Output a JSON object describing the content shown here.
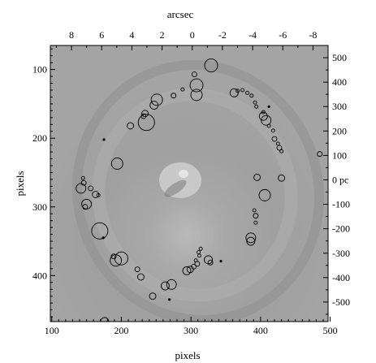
{
  "figure": {
    "top_axis_label": "arcsec",
    "left_axis_label": "pixels",
    "bottom_axis_label": "pixels",
    "right_axis_unit": "pc",
    "colors": {
      "background": "#9a9a9a",
      "frame": "#000000",
      "marker": "#000000"
    }
  },
  "chart_data": {
    "type": "scatter",
    "image_type": "greyscale residual image with circled sources",
    "axes": {
      "bottom": {
        "label": "pixels",
        "ticks": [
          100,
          200,
          300,
          400,
          500
        ],
        "range": [
          98,
          497
        ]
      },
      "left": {
        "label": "pixels",
        "ticks": [
          100,
          200,
          300,
          400
        ],
        "range": [
          65,
          467
        ],
        "inverted": true
      },
      "top": {
        "label": "arcsec",
        "ticks": [
          8,
          6,
          4,
          2,
          0,
          -2,
          -4,
          -6,
          -8
        ],
        "range": [
          9.4,
          -9.0
        ]
      },
      "right": {
        "label": "",
        "unit": "pc",
        "ticks": [
          500,
          400,
          300,
          200,
          100,
          0,
          -100,
          -200,
          -300,
          -400,
          -500
        ],
        "range": [
          550,
          -580
        ]
      }
    },
    "sources": [
      {
        "x": 329,
        "y": 94,
        "r": 8
      },
      {
        "x": 305,
        "y": 107,
        "r": 3
      },
      {
        "x": 308,
        "y": 123,
        "r": 8
      },
      {
        "x": 308,
        "y": 137,
        "r": 7
      },
      {
        "x": 288,
        "y": 129,
        "r": 2
      },
      {
        "x": 275,
        "y": 138,
        "r": 3
      },
      {
        "x": 251,
        "y": 144,
        "r": 7
      },
      {
        "x": 247,
        "y": 152,
        "r": 5
      },
      {
        "x": 234,
        "y": 164,
        "r": 4
      },
      {
        "x": 232,
        "y": 168,
        "r": 3
      },
      {
        "x": 236,
        "y": 177,
        "r": 10
      },
      {
        "x": 213,
        "y": 182,
        "r": 4
      },
      {
        "x": 194,
        "y": 237,
        "r": 7
      },
      {
        "x": 175,
        "y": 202,
        "r": 1
      },
      {
        "x": 145,
        "y": 258,
        "r": 2
      },
      {
        "x": 146,
        "y": 265,
        "r": 3
      },
      {
        "x": 142,
        "y": 273,
        "r": 6
      },
      {
        "x": 156,
        "y": 273,
        "r": 3
      },
      {
        "x": 163,
        "y": 282,
        "r": 4
      },
      {
        "x": 167,
        "y": 283,
        "r": 2
      },
      {
        "x": 150,
        "y": 296,
        "r": 6
      },
      {
        "x": 148,
        "y": 300,
        "r": 3
      },
      {
        "x": 169,
        "y": 335,
        "r": 10
      },
      {
        "x": 174,
        "y": 345,
        "r": 1
      },
      {
        "x": 189,
        "y": 372,
        "r": 3
      },
      {
        "x": 192,
        "y": 378,
        "r": 7
      },
      {
        "x": 200,
        "y": 375,
        "r": 8
      },
      {
        "x": 223,
        "y": 391,
        "r": 3
      },
      {
        "x": 228,
        "y": 402,
        "r": 4
      },
      {
        "x": 263,
        "y": 415,
        "r": 5
      },
      {
        "x": 272,
        "y": 413,
        "r": 6
      },
      {
        "x": 245,
        "y": 430,
        "r": 4
      },
      {
        "x": 269,
        "y": 435,
        "r": 1
      },
      {
        "x": 294,
        "y": 393,
        "r": 5
      },
      {
        "x": 299,
        "y": 391,
        "r": 4
      },
      {
        "x": 304,
        "y": 387,
        "r": 3
      },
      {
        "x": 309,
        "y": 383,
        "r": 3
      },
      {
        "x": 307,
        "y": 378,
        "r": 2
      },
      {
        "x": 312,
        "y": 371,
        "r": 2
      },
      {
        "x": 311,
        "y": 366,
        "r": 2
      },
      {
        "x": 314,
        "y": 361,
        "r": 2
      },
      {
        "x": 325,
        "y": 377,
        "r": 5
      },
      {
        "x": 328,
        "y": 381,
        "r": 3
      },
      {
        "x": 343,
        "y": 379,
        "r": 1
      },
      {
        "x": 176,
        "y": 467,
        "r": 5
      },
      {
        "x": 362,
        "y": 134,
        "r": 5
      },
      {
        "x": 367,
        "y": 131,
        "r": 2
      },
      {
        "x": 374,
        "y": 130,
        "r": 2
      },
      {
        "x": 381,
        "y": 134,
        "r": 2
      },
      {
        "x": 387,
        "y": 138,
        "r": 2
      },
      {
        "x": 392,
        "y": 148,
        "r": 2
      },
      {
        "x": 394,
        "y": 154,
        "r": 2
      },
      {
        "x": 404,
        "y": 162,
        "r": 2
      },
      {
        "x": 404,
        "y": 168,
        "r": 5
      },
      {
        "x": 408,
        "y": 174,
        "r": 6
      },
      {
        "x": 412,
        "y": 182,
        "r": 2
      },
      {
        "x": 418,
        "y": 189,
        "r": 2
      },
      {
        "x": 420,
        "y": 201,
        "r": 3
      },
      {
        "x": 425,
        "y": 208,
        "r": 2
      },
      {
        "x": 427,
        "y": 214,
        "r": 3
      },
      {
        "x": 430,
        "y": 219,
        "r": 2
      },
      {
        "x": 412,
        "y": 154,
        "r": 1
      },
      {
        "x": 430,
        "y": 258,
        "r": 4
      },
      {
        "x": 485,
        "y": 223,
        "r": 3
      },
      {
        "x": 395,
        "y": 257,
        "r": 4
      },
      {
        "x": 406,
        "y": 283,
        "r": 7
      },
      {
        "x": 391,
        "y": 305,
        "r": 2
      },
      {
        "x": 393,
        "y": 313,
        "r": 3
      },
      {
        "x": 393,
        "y": 323,
        "r": 2
      },
      {
        "x": 386,
        "y": 345,
        "r": 6
      },
      {
        "x": 386,
        "y": 350,
        "r": 5
      }
    ],
    "grid": false,
    "legend": "none"
  }
}
